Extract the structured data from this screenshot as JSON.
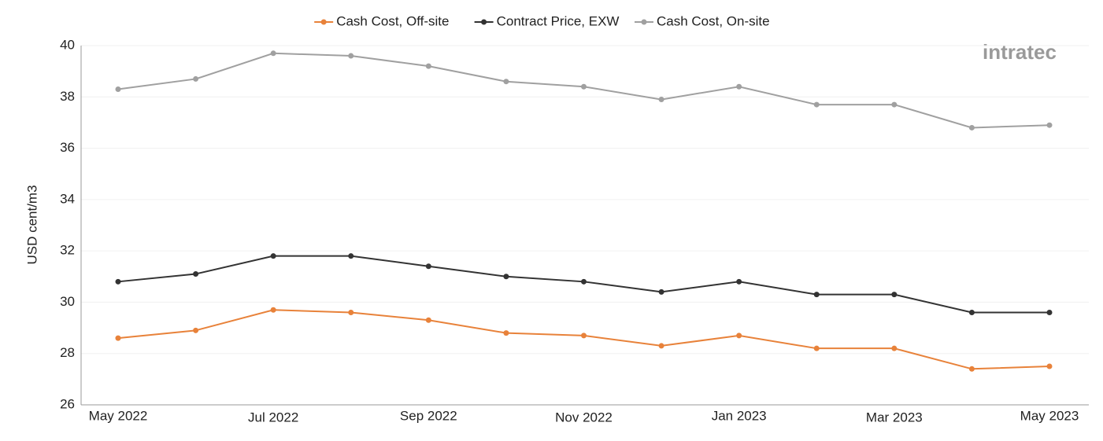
{
  "chart_data": {
    "type": "line",
    "y_label": "USD cent/m3",
    "logo": "intratec",
    "categories": [
      "May 2022",
      null,
      "Jul 2022",
      null,
      "Sep 2022",
      null,
      "Nov 2022",
      null,
      "Jan 2023",
      null,
      "Mar 2023",
      null,
      "May 2023"
    ],
    "series": [
      {
        "name": "Cash Cost, Off-site",
        "color": "#e8823a",
        "values": [
          28.6,
          28.9,
          29.7,
          29.6,
          29.3,
          28.8,
          28.7,
          28.3,
          28.7,
          28.2,
          28.2,
          27.4,
          27.5
        ]
      },
      {
        "name": "Contract Price, EXW",
        "color": "#333333",
        "values": [
          30.8,
          31.1,
          31.8,
          31.8,
          31.4,
          31.0,
          30.8,
          30.4,
          30.8,
          30.3,
          30.3,
          29.6,
          29.6
        ]
      },
      {
        "name": "Cash Cost, On-site",
        "color": "#a0a0a0",
        "values": [
          38.3,
          38.7,
          39.7,
          39.6,
          39.2,
          38.6,
          38.4,
          37.9,
          38.4,
          37.7,
          37.7,
          36.8,
          36.9
        ]
      }
    ],
    "ylim": [
      26,
      40
    ],
    "yticks": [
      26,
      28,
      30,
      32,
      34,
      36,
      38,
      40
    ],
    "grid": true,
    "legend": "top"
  }
}
